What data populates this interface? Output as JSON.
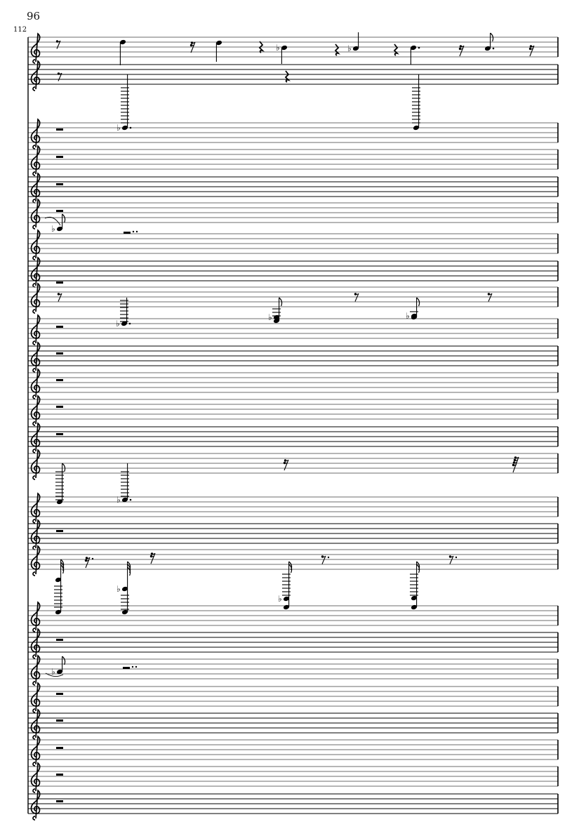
{
  "header": {
    "page_number": "96",
    "measure_number": "112"
  },
  "score": {
    "clef": "treble-clef",
    "staff_line_color": "#6e6e6e",
    "ink_color": "#000000"
  }
}
